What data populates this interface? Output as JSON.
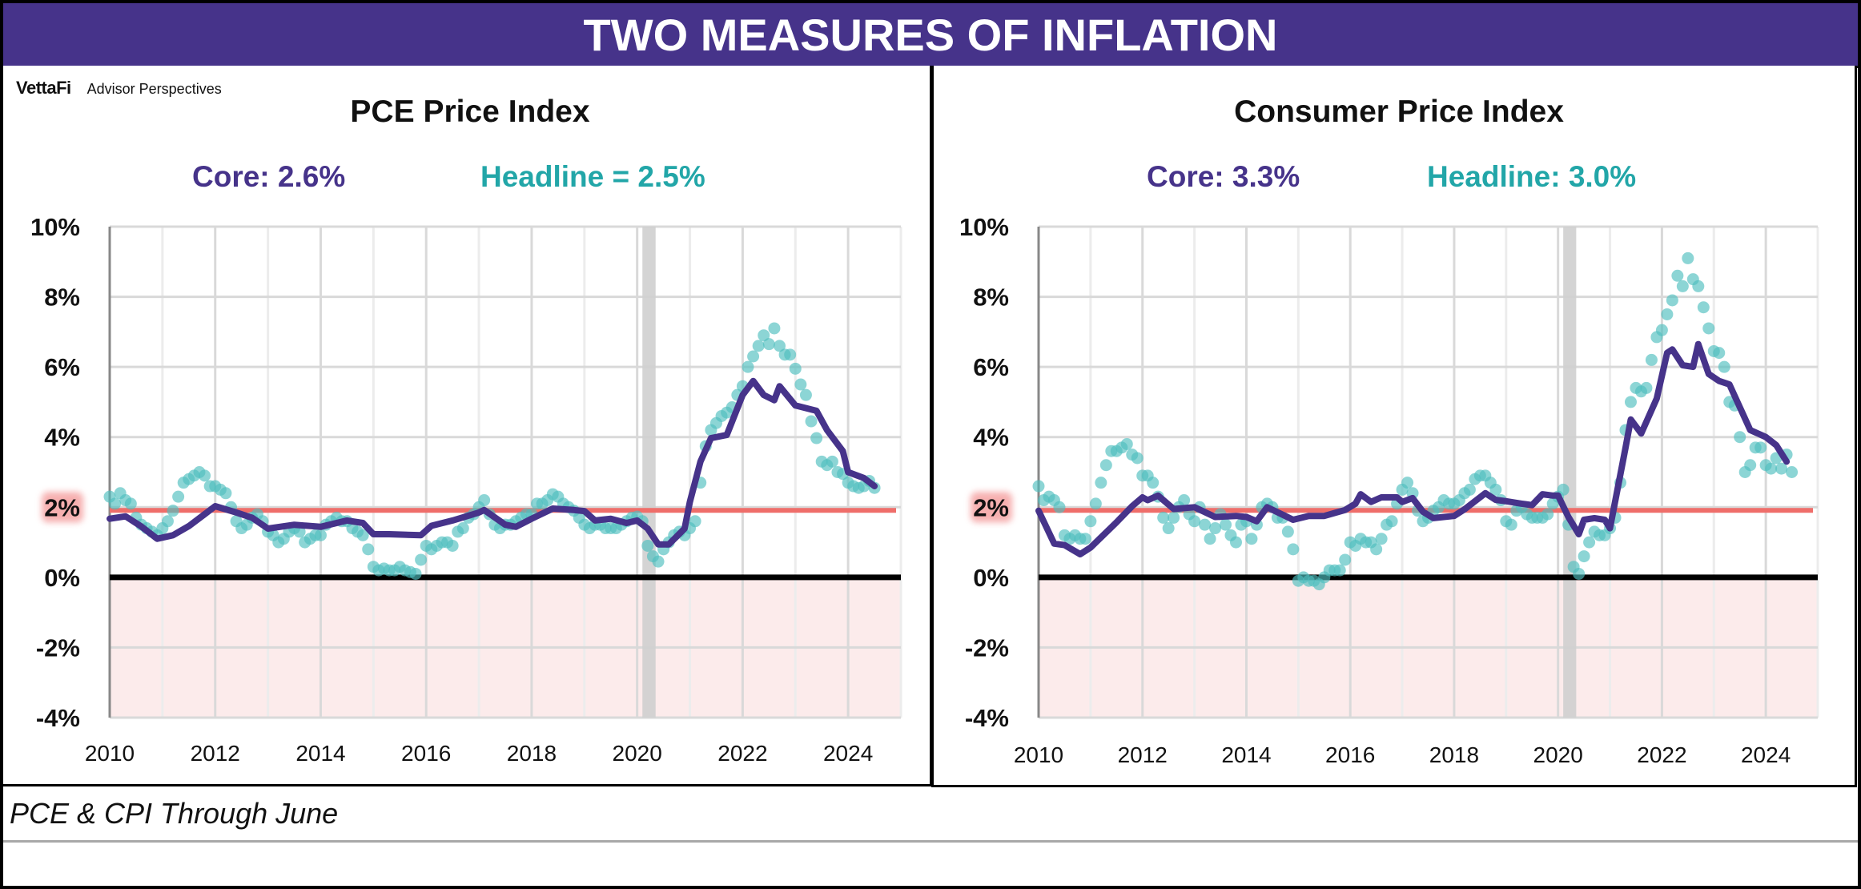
{
  "header": {
    "title": "TWO MEASURES OF INFLATION"
  },
  "branding": {
    "brand": "VettaFi",
    "sub": "Advisor Perspectives"
  },
  "footer": {
    "caption": "PCE & CPI Through June"
  },
  "colors": {
    "core": "#46338a",
    "headline": "#4fbfbf",
    "target": "#ef6e6a",
    "zero": "#000000",
    "negative_band": "#fcebeb",
    "recession": "#cfcfcf",
    "title_bar": "#46338a"
  },
  "chart_data": [
    {
      "type": "line",
      "title": "PCE Price Index",
      "core_label": "Core: 2.6%",
      "headline_label": "Headline = 2.5%",
      "xlabel": "",
      "ylabel": "",
      "xlim": [
        2010,
        2025
      ],
      "ylim": [
        -4,
        10
      ],
      "x_ticks": [
        2010,
        2012,
        2014,
        2016,
        2018,
        2020,
        2022,
        2024
      ],
      "x_tick_labels": [
        "2010",
        "2012",
        "2014",
        "2016",
        "2018",
        "2020",
        "2022",
        "2024"
      ],
      "y_ticks": [
        10,
        8,
        6,
        4,
        2,
        0,
        -2,
        -4
      ],
      "y_tick_labels": [
        "10%",
        "8%",
        "6%",
        "4%",
        "2%",
        "0%",
        "-2%",
        "-4%"
      ],
      "grid": true,
      "target_line": 2,
      "highlighted_tick": "2%",
      "recession_shading": [
        [
          2020.1,
          2020.35
        ]
      ],
      "series": [
        {
          "name": "Core",
          "style": "line",
          "x": [
            2010.0,
            2010.3,
            2010.6,
            2010.9,
            2011.2,
            2011.5,
            2011.8,
            2012.0,
            2012.4,
            2012.7,
            2013.0,
            2013.5,
            2014.0,
            2014.5,
            2014.8,
            2015.0,
            2015.3,
            2015.9,
            2016.1,
            2016.5,
            2017.0,
            2017.1,
            2017.5,
            2017.7,
            2018.0,
            2018.4,
            2018.8,
            2019.0,
            2019.2,
            2019.5,
            2019.8,
            2020.0,
            2020.2,
            2020.4,
            2020.6,
            2020.9,
            2021.0,
            2021.2,
            2021.4,
            2021.7,
            2022.0,
            2022.2,
            2022.4,
            2022.6,
            2022.7,
            2023.0,
            2023.4,
            2023.6,
            2023.9,
            2024.0,
            2024.3,
            2024.5
          ],
          "values": [
            1.67,
            1.74,
            1.45,
            1.1,
            1.2,
            1.46,
            1.8,
            2.03,
            1.85,
            1.7,
            1.39,
            1.5,
            1.44,
            1.62,
            1.55,
            1.23,
            1.23,
            1.2,
            1.47,
            1.62,
            1.85,
            1.92,
            1.5,
            1.44,
            1.67,
            1.96,
            1.92,
            1.89,
            1.62,
            1.67,
            1.55,
            1.62,
            1.39,
            0.94,
            0.94,
            1.39,
            2.15,
            3.3,
            3.97,
            4.06,
            5.2,
            5.6,
            5.2,
            5.05,
            5.45,
            4.9,
            4.75,
            4.2,
            3.6,
            3.0,
            2.83,
            2.6
          ]
        },
        {
          "name": "Headline",
          "style": "scatter",
          "x": [
            2010.0,
            2010.1,
            2010.2,
            2010.3,
            2010.4,
            2010.5,
            2010.6,
            2010.7,
            2010.8,
            2010.9,
            2011.0,
            2011.1,
            2011.2,
            2011.3,
            2011.4,
            2011.5,
            2011.6,
            2011.7,
            2011.8,
            2011.9,
            2012.0,
            2012.1,
            2012.2,
            2012.3,
            2012.4,
            2012.5,
            2012.6,
            2012.7,
            2012.8,
            2012.9,
            2013.0,
            2013.1,
            2013.2,
            2013.3,
            2013.4,
            2013.5,
            2013.6,
            2013.7,
            2013.8,
            2013.9,
            2014.0,
            2014.1,
            2014.2,
            2014.3,
            2014.4,
            2014.5,
            2014.6,
            2014.7,
            2014.8,
            2014.9,
            2015.0,
            2015.1,
            2015.2,
            2015.3,
            2015.4,
            2015.5,
            2015.6,
            2015.7,
            2015.8,
            2015.9,
            2016.0,
            2016.1,
            2016.2,
            2016.3,
            2016.4,
            2016.5,
            2016.6,
            2016.7,
            2016.8,
            2016.9,
            2017.0,
            2017.1,
            2017.2,
            2017.3,
            2017.4,
            2017.5,
            2017.6,
            2017.7,
            2017.8,
            2017.9,
            2018.0,
            2018.1,
            2018.2,
            2018.3,
            2018.4,
            2018.5,
            2018.6,
            2018.7,
            2018.8,
            2018.9,
            2019.0,
            2019.1,
            2019.2,
            2019.3,
            2019.4,
            2019.5,
            2019.6,
            2019.7,
            2019.8,
            2019.9,
            2020.0,
            2020.1,
            2020.2,
            2020.3,
            2020.4,
            2020.5,
            2020.6,
            2020.7,
            2020.8,
            2020.9,
            2021.0,
            2021.1,
            2021.2,
            2021.3,
            2021.4,
            2021.5,
            2021.6,
            2021.7,
            2021.8,
            2021.9,
            2022.0,
            2022.1,
            2022.2,
            2022.3,
            2022.4,
            2022.5,
            2022.6,
            2022.7,
            2022.8,
            2022.9,
            2023.0,
            2023.1,
            2023.2,
            2023.3,
            2023.4,
            2023.5,
            2023.6,
            2023.7,
            2023.8,
            2023.9,
            2024.0,
            2024.1,
            2024.2,
            2024.3,
            2024.4,
            2024.5
          ],
          "values": [
            2.3,
            2.1,
            2.4,
            2.2,
            2.1,
            1.7,
            1.5,
            1.4,
            1.3,
            1.2,
            1.4,
            1.6,
            1.9,
            2.3,
            2.7,
            2.8,
            2.9,
            3.0,
            2.9,
            2.6,
            2.6,
            2.5,
            2.4,
            2.0,
            1.6,
            1.4,
            1.5,
            1.7,
            1.8,
            1.6,
            1.3,
            1.2,
            1.0,
            1.1,
            1.3,
            1.4,
            1.3,
            1.0,
            1.1,
            1.2,
            1.2,
            1.5,
            1.6,
            1.7,
            1.6,
            1.6,
            1.4,
            1.3,
            1.2,
            0.8,
            0.3,
            0.2,
            0.25,
            0.2,
            0.2,
            0.3,
            0.2,
            0.15,
            0.1,
            0.5,
            0.9,
            0.8,
            0.9,
            1.0,
            1.0,
            0.9,
            1.3,
            1.4,
            1.7,
            1.8,
            2.0,
            2.2,
            1.8,
            1.5,
            1.4,
            1.5,
            1.5,
            1.6,
            1.7,
            1.8,
            1.8,
            2.1,
            2.1,
            2.2,
            2.37,
            2.3,
            2.1,
            2.0,
            1.9,
            1.7,
            1.5,
            1.4,
            1.5,
            1.5,
            1.4,
            1.4,
            1.4,
            1.5,
            1.6,
            1.7,
            1.73,
            1.6,
            0.9,
            0.6,
            0.45,
            0.8,
            1.0,
            1.2,
            1.3,
            1.2,
            1.4,
            1.6,
            2.7,
            3.74,
            4.2,
            4.4,
            4.6,
            4.7,
            4.85,
            5.2,
            5.45,
            6.0,
            6.3,
            6.6,
            6.9,
            6.65,
            7.1,
            6.6,
            6.35,
            6.35,
            5.95,
            5.5,
            5.2,
            4.45,
            3.97,
            3.3,
            3.2,
            3.3,
            3.0,
            2.95,
            2.7,
            2.6,
            2.55,
            2.6,
            2.75,
            2.55
          ]
        }
      ]
    },
    {
      "type": "line",
      "title": "Consumer Price Index",
      "core_label": "Core: 3.3%",
      "headline_label": "Headline: 3.0%",
      "xlabel": "",
      "ylabel": "",
      "xlim": [
        2010,
        2025
      ],
      "ylim": [
        -4,
        10
      ],
      "x_ticks": [
        2010,
        2012,
        2014,
        2016,
        2018,
        2020,
        2022,
        2024
      ],
      "x_tick_labels": [
        "2010",
        "2012",
        "2014",
        "2016",
        "2018",
        "2020",
        "2022",
        "2024"
      ],
      "y_ticks": [
        10,
        8,
        6,
        4,
        2,
        0,
        -2,
        -4
      ],
      "y_tick_labels": [
        "10%",
        "8%",
        "6%",
        "4%",
        "2%",
        "0%",
        "-2%",
        "-4%"
      ],
      "grid": true,
      "target_line": 2,
      "highlighted_tick": "2%",
      "recession_shading": [
        [
          2020.1,
          2020.35
        ]
      ],
      "series": [
        {
          "name": "Core",
          "style": "line",
          "x": [
            2010.0,
            2010.3,
            2010.5,
            2010.8,
            2011.0,
            2011.5,
            2011.8,
            2012.0,
            2012.1,
            2012.3,
            2012.6,
            2013.0,
            2013.4,
            2013.8,
            2014.0,
            2014.2,
            2014.4,
            2014.9,
            2015.2,
            2015.5,
            2015.9,
            2016.1,
            2016.2,
            2016.4,
            2016.6,
            2016.9,
            2017.0,
            2017.2,
            2017.4,
            2017.6,
            2018.0,
            2018.2,
            2018.6,
            2018.8,
            2019.0,
            2019.3,
            2019.5,
            2019.7,
            2019.9,
            2020.0,
            2020.2,
            2020.4,
            2020.5,
            2020.7,
            2020.9,
            2021.0,
            2021.3,
            2021.4,
            2021.6,
            2021.9,
            2022.1,
            2022.2,
            2022.4,
            2022.6,
            2022.7,
            2022.9,
            2023.1,
            2023.3,
            2023.5,
            2023.7,
            2024.0,
            2024.2,
            2024.4
          ],
          "values": [
            1.9,
            0.96,
            0.92,
            0.66,
            0.85,
            1.57,
            2.03,
            2.28,
            2.2,
            2.33,
            1.95,
            2.0,
            1.72,
            1.75,
            1.72,
            1.6,
            2.0,
            1.64,
            1.75,
            1.75,
            1.92,
            2.1,
            2.37,
            2.15,
            2.28,
            2.28,
            2.15,
            2.26,
            1.87,
            1.69,
            1.75,
            1.94,
            2.4,
            2.21,
            2.17,
            2.1,
            2.06,
            2.37,
            2.33,
            2.33,
            1.72,
            1.23,
            1.64,
            1.69,
            1.64,
            1.4,
            3.7,
            4.5,
            4.1,
            5.1,
            6.4,
            6.5,
            6.05,
            6.0,
            6.65,
            5.8,
            5.6,
            5.5,
            4.85,
            4.2,
            4.0,
            3.77,
            3.3
          ]
        },
        {
          "name": "Headline",
          "style": "scatter",
          "x": [
            2010.0,
            2010.1,
            2010.2,
            2010.3,
            2010.4,
            2010.5,
            2010.6,
            2010.7,
            2010.8,
            2010.9,
            2011.0,
            2011.1,
            2011.2,
            2011.3,
            2011.4,
            2011.5,
            2011.6,
            2011.7,
            2011.8,
            2011.9,
            2012.0,
            2012.1,
            2012.2,
            2012.3,
            2012.4,
            2012.5,
            2012.6,
            2012.7,
            2012.8,
            2012.9,
            2013.0,
            2013.1,
            2013.2,
            2013.3,
            2013.4,
            2013.5,
            2013.6,
            2013.7,
            2013.8,
            2013.9,
            2014.0,
            2014.1,
            2014.2,
            2014.3,
            2014.4,
            2014.5,
            2014.6,
            2014.7,
            2014.8,
            2014.9,
            2015.0,
            2015.1,
            2015.2,
            2015.3,
            2015.4,
            2015.5,
            2015.6,
            2015.7,
            2015.8,
            2015.9,
            2016.0,
            2016.1,
            2016.2,
            2016.3,
            2016.4,
            2016.5,
            2016.6,
            2016.7,
            2016.8,
            2016.9,
            2017.0,
            2017.1,
            2017.2,
            2017.3,
            2017.4,
            2017.5,
            2017.6,
            2017.7,
            2017.8,
            2017.9,
            2018.0,
            2018.1,
            2018.2,
            2018.3,
            2018.4,
            2018.5,
            2018.6,
            2018.7,
            2018.8,
            2018.9,
            2019.0,
            2019.1,
            2019.2,
            2019.3,
            2019.4,
            2019.5,
            2019.6,
            2019.7,
            2019.8,
            2019.9,
            2020.0,
            2020.1,
            2020.2,
            2020.3,
            2020.4,
            2020.5,
            2020.6,
            2020.7,
            2020.8,
            2020.9,
            2021.0,
            2021.1,
            2021.2,
            2021.3,
            2021.4,
            2021.5,
            2021.6,
            2021.7,
            2021.8,
            2021.9,
            2022.0,
            2022.1,
            2022.2,
            2022.3,
            2022.4,
            2022.5,
            2022.6,
            2022.7,
            2022.8,
            2022.9,
            2023.0,
            2023.1,
            2023.2,
            2023.3,
            2023.4,
            2023.5,
            2023.6,
            2023.7,
            2023.8,
            2023.9,
            2024.0,
            2024.1,
            2024.2,
            2024.3,
            2024.4,
            2024.5
          ],
          "values": [
            2.6,
            2.2,
            2.3,
            2.2,
            2.0,
            1.2,
            1.1,
            1.2,
            1.1,
            1.1,
            1.6,
            2.1,
            2.7,
            3.2,
            3.6,
            3.6,
            3.7,
            3.8,
            3.5,
            3.4,
            2.9,
            2.9,
            2.7,
            2.3,
            1.7,
            1.4,
            1.7,
            2.0,
            2.2,
            1.8,
            1.6,
            2.0,
            1.5,
            1.1,
            1.4,
            1.8,
            1.5,
            1.2,
            1.0,
            1.5,
            1.6,
            1.1,
            1.5,
            2.0,
            2.1,
            2.0,
            1.7,
            1.7,
            1.3,
            0.8,
            -0.1,
            0.0,
            -0.1,
            -0.1,
            -0.2,
            0.0,
            0.2,
            0.2,
            0.2,
            0.5,
            1.0,
            0.9,
            1.1,
            1.0,
            1.0,
            0.8,
            1.1,
            1.5,
            1.6,
            2.1,
            2.5,
            2.7,
            2.4,
            1.9,
            1.6,
            1.7,
            1.9,
            2.0,
            2.2,
            2.1,
            2.1,
            2.2,
            2.4,
            2.5,
            2.8,
            2.9,
            2.9,
            2.7,
            2.5,
            2.2,
            1.6,
            1.5,
            1.9,
            2.0,
            1.8,
            1.7,
            1.7,
            1.7,
            1.8,
            2.1,
            2.3,
            2.5,
            1.5,
            0.3,
            0.1,
            0.6,
            1.0,
            1.3,
            1.2,
            1.2,
            1.4,
            1.7,
            2.7,
            4.2,
            5.0,
            5.4,
            5.3,
            5.4,
            6.2,
            6.85,
            7.05,
            7.5,
            7.9,
            8.6,
            8.3,
            9.1,
            8.5,
            8.3,
            7.7,
            7.1,
            6.45,
            6.4,
            6.0,
            5.0,
            4.9,
            4.0,
            3.0,
            3.2,
            3.7,
            3.7,
            3.2,
            3.1,
            3.4,
            3.1,
            3.5,
            3.0
          ]
        }
      ]
    }
  ]
}
